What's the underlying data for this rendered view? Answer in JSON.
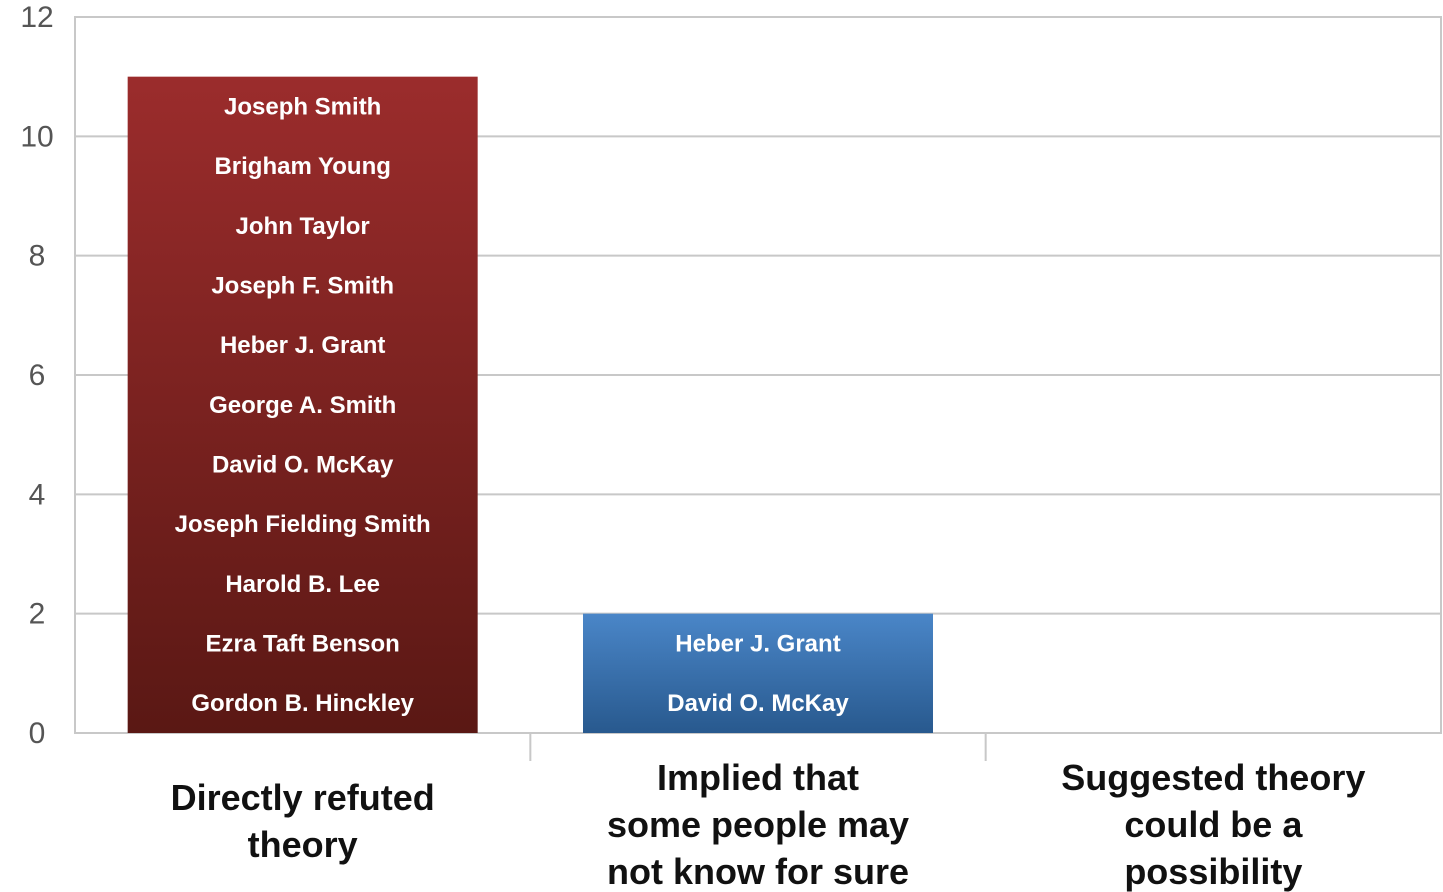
{
  "chart_data": {
    "type": "bar",
    "categories": [
      "Directly refuted theory",
      "Implied that some people may not know for sure",
      "Suggested theory could be a possibility"
    ],
    "category_lines": [
      [
        "Directly refuted",
        "theory"
      ],
      [
        "Implied that",
        "some people may",
        "not know for sure"
      ],
      [
        "Suggested theory",
        "could be a",
        "possibility"
      ]
    ],
    "values": [
      11,
      2,
      0
    ],
    "bar_names": [
      [
        "Joseph Smith",
        "Brigham Young",
        "John Taylor",
        "Joseph F. Smith",
        "Heber J. Grant",
        "George A. Smith",
        "David O. McKay",
        "Joseph Fielding Smith",
        "Harold B. Lee",
        "Ezra Taft Benson",
        "Gordon B. Hinckley"
      ],
      [
        "Heber J. Grant",
        "David O. McKay"
      ],
      []
    ],
    "colors": [
      [
        "#9b2c2c",
        "#5a1814"
      ],
      [
        "#4a86c8",
        "#28598e"
      ],
      [
        "#888888",
        "#555555"
      ]
    ],
    "ylim": [
      0,
      12
    ],
    "yticks": [
      0,
      2,
      4,
      6,
      8,
      10,
      12
    ],
    "grid": true,
    "title": "",
    "xlabel": "",
    "ylabel": ""
  }
}
